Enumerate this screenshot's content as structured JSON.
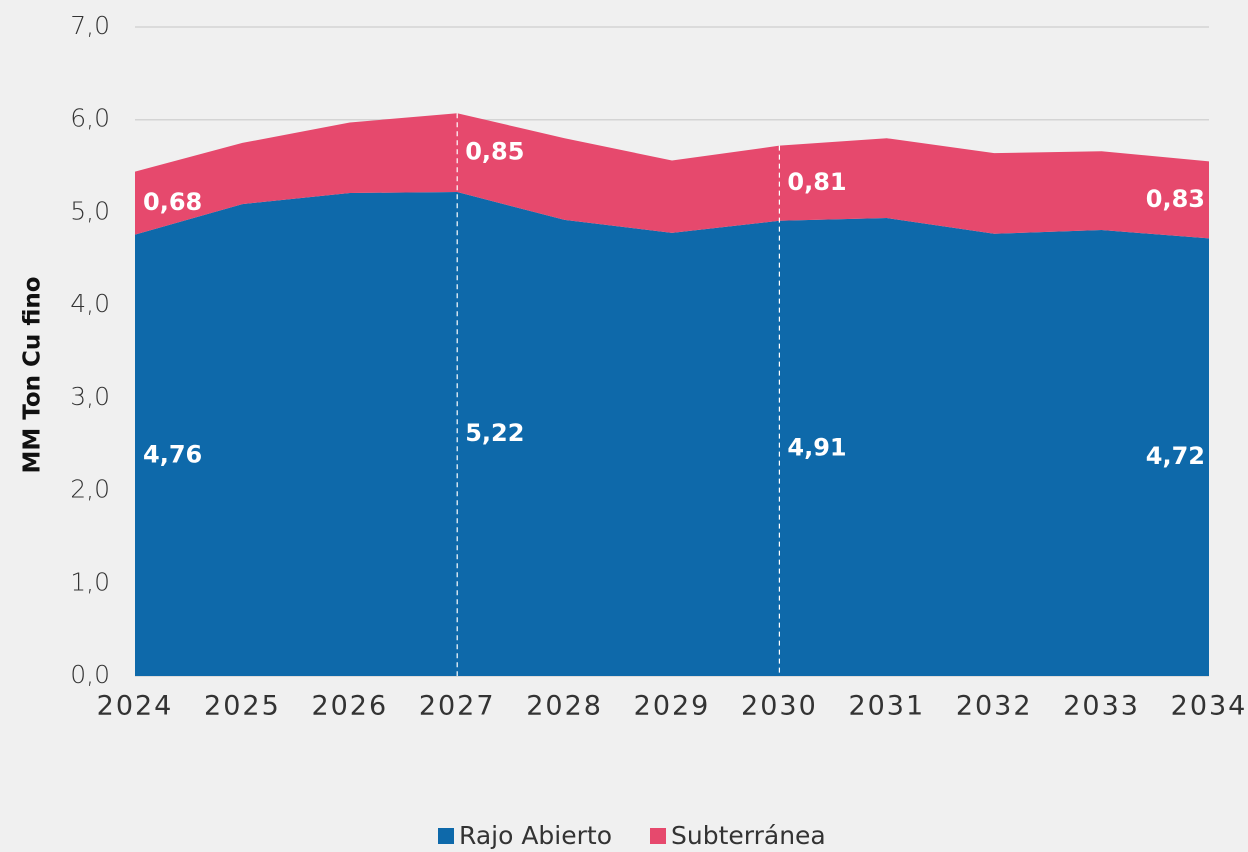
{
  "chart_data": {
    "type": "stacked_area",
    "y_label": "MM Ton Cu fino",
    "categories": [
      "2024",
      "2025",
      "2026",
      "2027",
      "2028",
      "2029",
      "2030",
      "2031",
      "2032",
      "2033",
      "2034"
    ],
    "series": [
      {
        "name": "Rajo Abierto",
        "color": "#0e69aa",
        "values": [
          4.76,
          5.09,
          5.21,
          5.22,
          4.92,
          4.78,
          4.91,
          4.94,
          4.77,
          4.81,
          4.72
        ],
        "value_labels": [
          "4,76",
          null,
          null,
          "5,22",
          null,
          null,
          "4,91",
          null,
          null,
          null,
          "4,72"
        ]
      },
      {
        "name": "Subterránea",
        "color": "#e6496d",
        "values": [
          0.68,
          0.66,
          0.76,
          0.85,
          0.88,
          0.78,
          0.81,
          0.86,
          0.87,
          0.85,
          0.83
        ],
        "value_labels": [
          "0,68",
          null,
          null,
          "0,85",
          null,
          null,
          "0,81",
          null,
          null,
          null,
          "0,83"
        ]
      }
    ],
    "ylim": [
      0,
      7
    ],
    "yticks": [
      {
        "value": 0,
        "label": "0,0"
      },
      {
        "value": 1,
        "label": "1,0"
      },
      {
        "value": 2,
        "label": "2,0"
      },
      {
        "value": 3,
        "label": "3,0"
      },
      {
        "value": 4,
        "label": "4,0"
      },
      {
        "value": 5,
        "label": "5,0"
      },
      {
        "value": 6,
        "label": "6,0"
      },
      {
        "value": 7,
        "label": "7,0"
      }
    ],
    "grid": true,
    "dashed_at": [
      "2027",
      "2030"
    ],
    "legend": "bottom"
  }
}
